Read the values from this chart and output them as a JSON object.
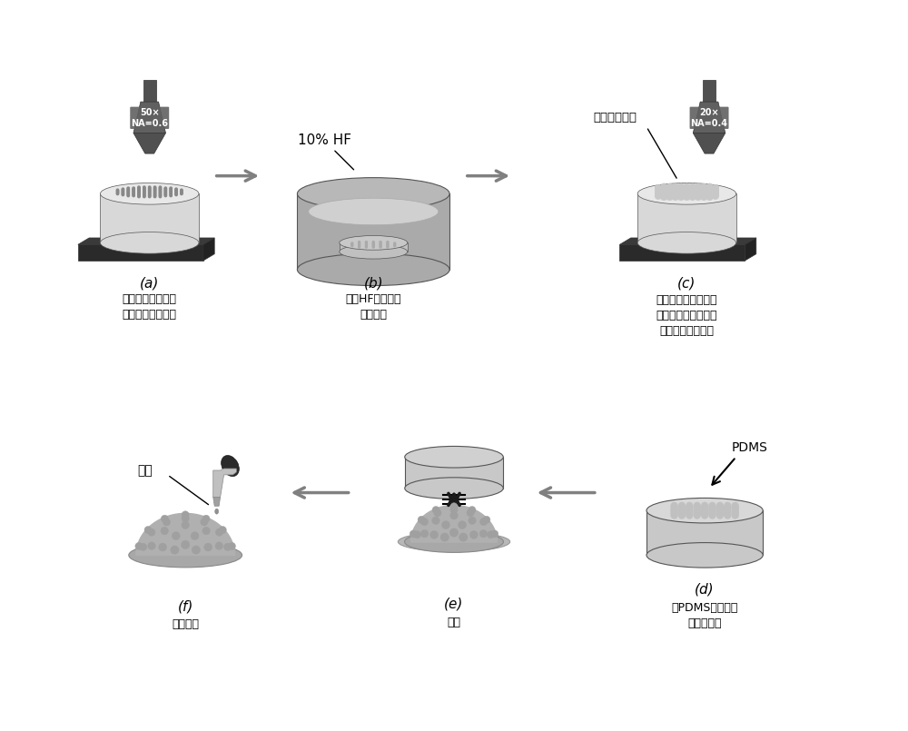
{
  "bg_color": "#ffffff",
  "panel_labels": [
    "(a)",
    "(b)",
    "(c)",
    "(d)",
    "(e)",
    "(f)"
  ],
  "panel_captions": [
    "飞秒激光环形扫描\n制造微缺陷改性区",
    "使用HF溶液刻蚀\n加工样品",
    "飞秒激光直写扫描刻\n蚀后样品表面，形成\n多孔微纳复合结构",
    "将PDMS浇筑在模\n具上，固化",
    "脱模",
    "灌注硅油"
  ],
  "lens_a_label": "50×\nNA=0.6",
  "lens_c_label": "20×\nNA=0.4",
  "hf_label": "10% HF",
  "nano_label": "微纳复合结构",
  "silicone_label": "硅油",
  "pdms_label": "PDMS",
  "arrow_color": "#808080",
  "text_color": "#000000",
  "gray_dark": "#404040",
  "gray_mid": "#808080",
  "gray_light": "#c0c0c0",
  "gray_lighter": "#d8d8d8",
  "gray_lightest": "#e8e8e8",
  "black": "#1a1a1a",
  "platform_color": "#2a2a2a"
}
